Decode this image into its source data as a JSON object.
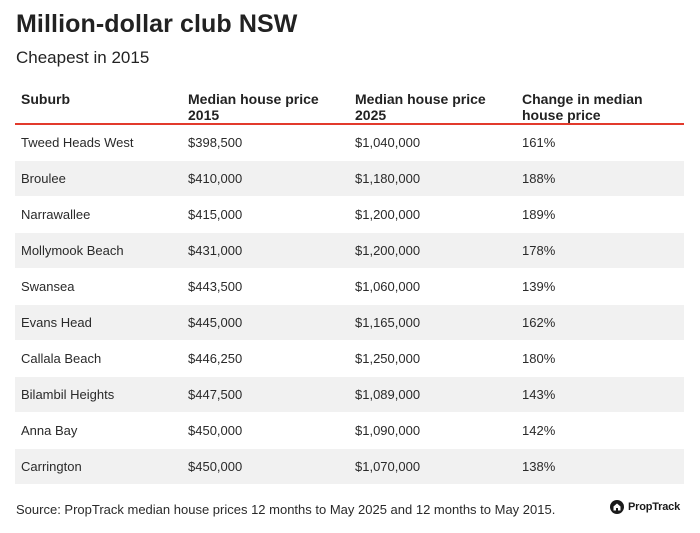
{
  "title": "Million-dollar club NSW",
  "subtitle": "Cheapest in 2015",
  "source": "Source: PropTrack median house prices 12 months to May 2025 and 12 months to May 2015.",
  "brand": {
    "name": "PropTrack",
    "logo_icon": "house-icon"
  },
  "colors": {
    "header_rule": "#e23a2c",
    "stripe": "#f1f1f1"
  },
  "chart_data": {
    "type": "table",
    "title": "Million-dollar club NSW",
    "subtitle": "Cheapest in 2015",
    "columns": [
      "Suburb",
      "Median house price 2015",
      "Median house price 2025",
      "Change in median house price"
    ],
    "rows": [
      [
        "Tweed Heads West",
        "$398,500",
        "$1,040,000",
        "161%"
      ],
      [
        "Broulee",
        "$410,000",
        "$1,180,000",
        "188%"
      ],
      [
        "Narrawallee",
        "$415,000",
        "$1,200,000",
        "189%"
      ],
      [
        "Mollymook Beach",
        "$431,000",
        "$1,200,000",
        "178%"
      ],
      [
        "Swansea",
        "$443,500",
        "$1,060,000",
        "139%"
      ],
      [
        "Evans Head",
        "$445,000",
        "$1,165,000",
        "162%"
      ],
      [
        "Callala Beach",
        "$446,250",
        "$1,250,000",
        "180%"
      ],
      [
        "Bilambil Heights",
        "$447,500",
        "$1,089,000",
        "143%"
      ],
      [
        "Anna Bay",
        "$450,000",
        "$1,090,000",
        "142%"
      ],
      [
        "Carrington",
        "$450,000",
        "$1,070,000",
        "138%"
      ]
    ]
  }
}
